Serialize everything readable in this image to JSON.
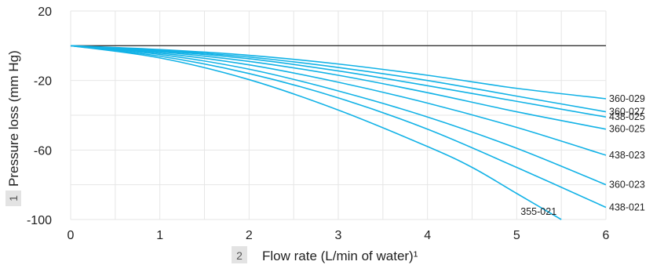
{
  "chart_data": {
    "type": "line",
    "xlabel": "Flow rate (L/min of water)¹",
    "ylabel": "Pressure loss (mm Hg)",
    "xlabel_marker": "2",
    "ylabel_marker": "1",
    "xlim": [
      0,
      6
    ],
    "ylim": [
      -100,
      20
    ],
    "xticks": [
      "0",
      "1",
      "2",
      "3",
      "4",
      "5",
      "6"
    ],
    "yticks": [
      "20",
      "-20",
      "-60",
      "-100"
    ],
    "grid": true,
    "reference_line": {
      "y": 0,
      "color": "#333333"
    },
    "series_color": "#12b2e6",
    "series": [
      {
        "name": "360-029",
        "points": [
          [
            0,
            0
          ],
          [
            1,
            -2.2
          ],
          [
            2,
            -5.5
          ],
          [
            3,
            -10.5
          ],
          [
            4,
            -17
          ],
          [
            5,
            -24.5
          ],
          [
            6,
            -30.5
          ]
        ]
      },
      {
        "name": "360-027",
        "points": [
          [
            0,
            0
          ],
          [
            1,
            -2.6
          ],
          [
            2,
            -6.5
          ],
          [
            3,
            -12.5
          ],
          [
            4,
            -20
          ],
          [
            5,
            -29
          ],
          [
            6,
            -38
          ]
        ]
      },
      {
        "name": "438-025",
        "points": [
          [
            0,
            0
          ],
          [
            1,
            -3
          ],
          [
            2,
            -7.5
          ],
          [
            3,
            -14.5
          ],
          [
            4,
            -23
          ],
          [
            5,
            -32
          ],
          [
            6,
            -41
          ]
        ]
      },
      {
        "name": "360-025",
        "points": [
          [
            0,
            0
          ],
          [
            1,
            -3.5
          ],
          [
            2,
            -9
          ],
          [
            3,
            -17
          ],
          [
            4,
            -27
          ],
          [
            5,
            -38
          ],
          [
            6,
            -48
          ]
        ]
      },
      {
        "name": "438-023",
        "points": [
          [
            0,
            0
          ],
          [
            1,
            -4.2
          ],
          [
            2,
            -11
          ],
          [
            3,
            -21
          ],
          [
            4,
            -33
          ],
          [
            5,
            -47
          ],
          [
            6,
            -63
          ]
        ]
      },
      {
        "name": "360-023",
        "points": [
          [
            0,
            0
          ],
          [
            1,
            -5
          ],
          [
            2,
            -13.5
          ],
          [
            3,
            -26
          ],
          [
            4,
            -41
          ],
          [
            5,
            -59
          ],
          [
            6,
            -80
          ]
        ]
      },
      {
        "name": "438-021",
        "points": [
          [
            0,
            0
          ],
          [
            1,
            -6
          ],
          [
            2,
            -16
          ],
          [
            3,
            -30
          ],
          [
            4,
            -48
          ],
          [
            5,
            -70
          ],
          [
            6,
            -93
          ]
        ]
      },
      {
        "name": "355-021",
        "points": [
          [
            0,
            0
          ],
          [
            1,
            -7
          ],
          [
            2,
            -19.5
          ],
          [
            3,
            -37
          ],
          [
            4,
            -58
          ],
          [
            4.5,
            -70
          ],
          [
            5,
            -85
          ],
          [
            5.5,
            -100
          ]
        ]
      }
    ]
  }
}
